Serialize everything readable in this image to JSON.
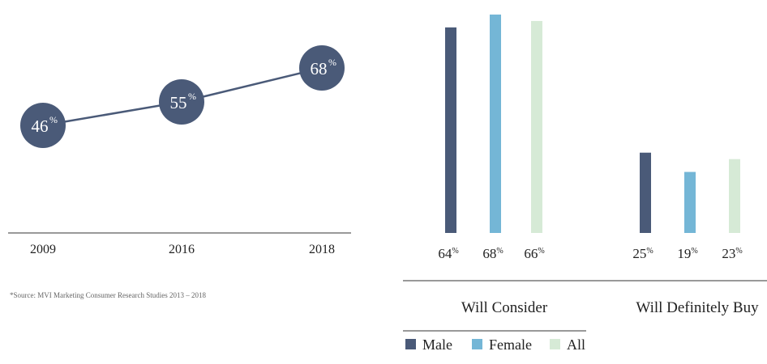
{
  "colors": {
    "navy": "#4a5a78",
    "blue": "#74b6d6",
    "green": "#d6ead6",
    "axis": "#333333"
  },
  "chart_data": [
    {
      "type": "line",
      "x": [
        "2009",
        "2016",
        "2018"
      ],
      "values": [
        46,
        55,
        68
      ],
      "value_labels": [
        "46",
        "55",
        "68"
      ],
      "unit": "%",
      "source": "*Source: MVI Marketing Consumer Research Studies 2013 – 2018"
    },
    {
      "type": "bar",
      "categories": [
        "Will Consider",
        "Will Definitely Buy"
      ],
      "series": [
        {
          "name": "Male",
          "values": [
            64,
            25
          ],
          "labels": [
            "64",
            "25"
          ]
        },
        {
          "name": "Female",
          "values": [
            68,
            19
          ],
          "labels": [
            "68",
            "19"
          ]
        },
        {
          "name": "All",
          "values": [
            66,
            23
          ],
          "labels": [
            "66",
            "23"
          ]
        }
      ],
      "unit": "%",
      "legend": "bottom-left"
    }
  ]
}
